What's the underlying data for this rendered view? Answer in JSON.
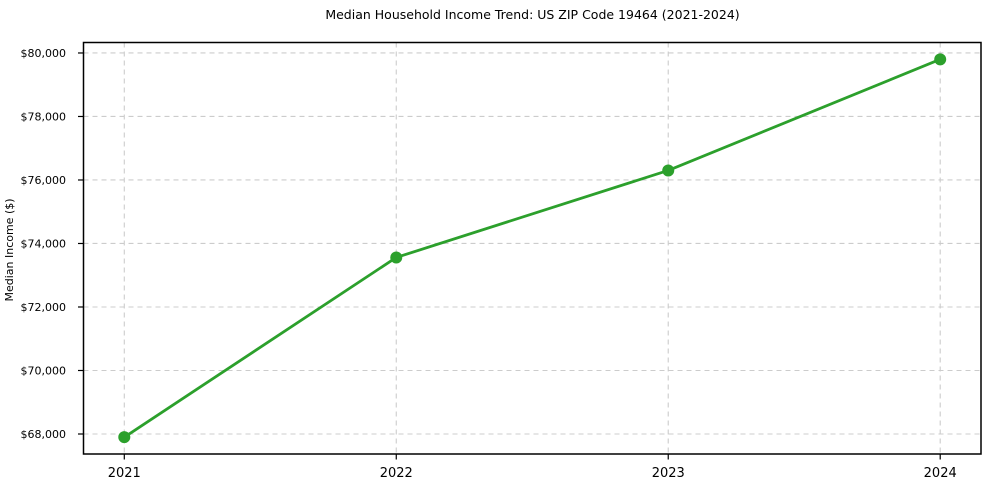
{
  "chart_data": {
    "type": "line",
    "title": "Median Household Income Trend: US ZIP Code 19464 (2021-2024)",
    "xlabel": "",
    "ylabel": "Median Income ($)",
    "categories": [
      "2021",
      "2022",
      "2023",
      "2024"
    ],
    "series": [
      {
        "name": "Median Household Income",
        "values": [
          67900,
          73560,
          76300,
          79800
        ]
      }
    ],
    "yticks": [
      68000,
      70000,
      72000,
      74000,
      76000,
      78000,
      80000
    ],
    "ytick_labels": [
      "$68,000",
      "$70,000",
      "$72,000",
      "$74,000",
      "$76,000",
      "$78,000",
      "$80,000"
    ],
    "ylim": [
      67370,
      80330
    ],
    "xlim": [
      -0.15,
      3.15
    ],
    "grid": true,
    "grid_style": "dashed",
    "legend": "none",
    "line_color": "#2ca02c",
    "marker": "circle",
    "grid_color": "#cccccc",
    "axis_color": "#000000",
    "background_color": "#ffffff"
  }
}
